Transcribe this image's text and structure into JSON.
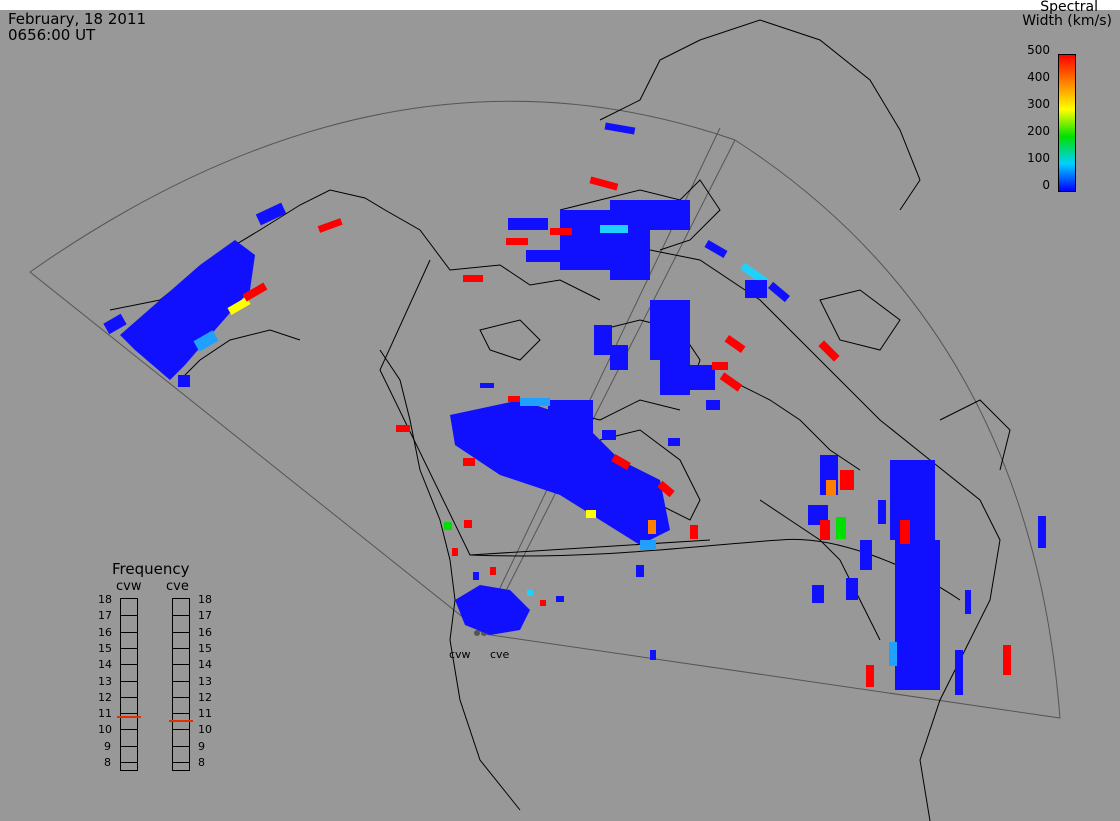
{
  "header": {
    "date": "February, 18 2011",
    "time": "0656:00 UT"
  },
  "colorbar": {
    "title_line1": "Spectral",
    "title_line2": "Width (km/s)",
    "ticks": [
      "500",
      "400",
      "300",
      "200",
      "100",
      "0"
    ],
    "colors": [
      "#ff0000",
      "#ff8000",
      "#ffff00",
      "#00e000",
      "#00d0ff",
      "#0000ff"
    ]
  },
  "frequency": {
    "title": "Frequency",
    "radar_left": "cvw",
    "radar_right": "cve",
    "levels": [
      "18",
      "17",
      "16",
      "15",
      "14",
      "13",
      "12",
      "11",
      "10",
      "9",
      "8"
    ],
    "cvw_value": 10.8,
    "cve_value": 10.6,
    "marker_color": "#e03000"
  },
  "radars": {
    "left": "cvw",
    "right": "cve"
  }
}
